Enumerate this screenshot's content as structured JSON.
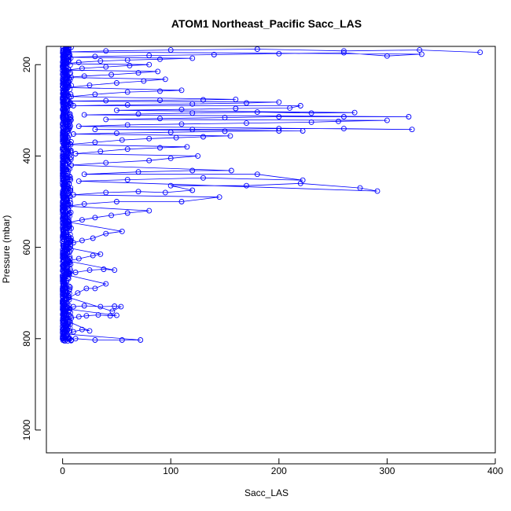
{
  "chart_data": {
    "type": "line",
    "title": "ATOM1 Northeast_Pacific Sacc_LAS",
    "xlabel": "Sacc_LAS",
    "ylabel": "Pressure (mbar)",
    "xlim": [
      -15,
      400
    ],
    "ylim": [
      1050,
      160
    ],
    "y_reversed": true,
    "x_ticks": [
      0,
      100,
      200,
      300,
      400
    ],
    "y_ticks": [
      200,
      400,
      600,
      800,
      1000
    ],
    "grid": false,
    "legend": "none",
    "marker": "open-circle",
    "series": [
      {
        "color": "#0000ff",
        "points": [
          [
            2,
            805
          ],
          [
            5,
            800
          ],
          [
            8,
            803
          ],
          [
            12,
            800
          ],
          [
            30,
            803
          ],
          [
            55,
            803
          ],
          [
            72,
            803
          ],
          [
            4,
            790
          ],
          [
            10,
            785
          ],
          [
            18,
            780
          ],
          [
            25,
            783
          ],
          [
            3,
            760
          ],
          [
            8,
            755
          ],
          [
            15,
            752
          ],
          [
            22,
            750
          ],
          [
            33,
            748
          ],
          [
            44,
            750
          ],
          [
            50,
            749
          ],
          [
            4,
            735
          ],
          [
            10,
            730
          ],
          [
            20,
            728
          ],
          [
            35,
            730
          ],
          [
            48,
            729
          ],
          [
            54,
            730
          ],
          [
            46,
            740
          ],
          [
            6,
            710
          ],
          [
            14,
            700
          ],
          [
            22,
            690
          ],
          [
            30,
            690
          ],
          [
            40,
            680
          ],
          [
            3,
            660
          ],
          [
            12,
            655
          ],
          [
            25,
            650
          ],
          [
            38,
            648
          ],
          [
            48,
            650
          ],
          [
            5,
            630
          ],
          [
            15,
            625
          ],
          [
            28,
            618
          ],
          [
            35,
            615
          ],
          [
            3,
            600
          ],
          [
            10,
            590
          ],
          [
            18,
            585
          ],
          [
            28,
            580
          ],
          [
            40,
            570
          ],
          [
            55,
            565
          ],
          [
            6,
            545
          ],
          [
            18,
            540
          ],
          [
            30,
            535
          ],
          [
            45,
            530
          ],
          [
            60,
            525
          ],
          [
            80,
            520
          ],
          [
            5,
            510
          ],
          [
            20,
            505
          ],
          [
            50,
            500
          ],
          [
            110,
            500
          ],
          [
            145,
            490
          ],
          [
            10,
            485
          ],
          [
            40,
            480
          ],
          [
            70,
            478
          ],
          [
            95,
            480
          ],
          [
            120,
            475
          ],
          [
            100,
            465
          ],
          [
            170,
            465
          ],
          [
            220,
            460
          ],
          [
            275,
            470
          ],
          [
            291,
            477
          ],
          [
            15,
            455
          ],
          [
            60,
            452
          ],
          [
            130,
            448
          ],
          [
            222,
            453
          ],
          [
            180,
            440
          ],
          [
            20,
            440
          ],
          [
            70,
            435
          ],
          [
            120,
            432
          ],
          [
            156,
            432
          ],
          [
            8,
            420
          ],
          [
            40,
            415
          ],
          [
            80,
            410
          ],
          [
            100,
            405
          ],
          [
            125,
            400
          ],
          [
            12,
            395
          ],
          [
            35,
            390
          ],
          [
            60,
            385
          ],
          [
            90,
            382
          ],
          [
            115,
            380
          ],
          [
            5,
            375
          ],
          [
            30,
            370
          ],
          [
            55,
            365
          ],
          [
            80,
            362
          ],
          [
            105,
            360
          ],
          [
            130,
            358
          ],
          [
            155,
            356
          ],
          [
            10,
            352
          ],
          [
            50,
            350
          ],
          [
            100,
            348
          ],
          [
            150,
            346
          ],
          [
            200,
            345
          ],
          [
            222,
            345
          ],
          [
            30,
            342
          ],
          [
            120,
            342
          ],
          [
            200,
            340
          ],
          [
            260,
            340
          ],
          [
            323,
            342
          ],
          [
            15,
            335
          ],
          [
            60,
            332
          ],
          [
            110,
            330
          ],
          [
            170,
            328
          ],
          [
            230,
            326
          ],
          [
            255,
            324
          ],
          [
            300,
            322
          ],
          [
            40,
            320
          ],
          [
            90,
            318
          ],
          [
            150,
            316
          ],
          [
            200,
            314
          ],
          [
            260,
            314
          ],
          [
            320,
            314
          ],
          [
            20,
            310
          ],
          [
            70,
            308
          ],
          [
            120,
            306
          ],
          [
            180,
            304
          ],
          [
            230,
            306
          ],
          [
            270,
            305
          ],
          [
            50,
            300
          ],
          [
            110,
            298
          ],
          [
            160,
            296
          ],
          [
            210,
            295
          ],
          [
            220,
            290
          ],
          [
            10,
            290
          ],
          [
            60,
            288
          ],
          [
            120,
            286
          ],
          [
            170,
            284
          ],
          [
            200,
            282
          ],
          [
            5,
            280
          ],
          [
            40,
            279
          ],
          [
            90,
            278
          ],
          [
            130,
            277
          ],
          [
            160,
            276
          ],
          [
            8,
            270
          ],
          [
            30,
            265
          ],
          [
            60,
            260
          ],
          [
            90,
            258
          ],
          [
            110,
            256
          ],
          [
            5,
            250
          ],
          [
            25,
            245
          ],
          [
            50,
            240
          ],
          [
            75,
            236
          ],
          [
            95,
            232
          ],
          [
            3,
            228
          ],
          [
            20,
            225
          ],
          [
            45,
            222
          ],
          [
            70,
            218
          ],
          [
            88,
            215
          ],
          [
            4,
            212
          ],
          [
            18,
            208
          ],
          [
            40,
            205
          ],
          [
            62,
            202
          ],
          [
            80,
            200
          ],
          [
            2,
            198
          ],
          [
            15,
            195
          ],
          [
            35,
            192
          ],
          [
            60,
            190
          ],
          [
            90,
            188
          ],
          [
            120,
            186
          ],
          [
            6,
            184
          ],
          [
            30,
            182
          ],
          [
            80,
            180
          ],
          [
            140,
            178
          ],
          [
            200,
            176
          ],
          [
            260,
            174
          ],
          [
            300,
            181
          ],
          [
            332,
            177
          ],
          [
            5,
            172
          ],
          [
            40,
            170
          ],
          [
            100,
            168
          ],
          [
            180,
            166
          ],
          [
            260,
            170
          ],
          [
            330,
            168
          ],
          [
            386,
            173
          ]
        ]
      }
    ],
    "dense_band": {
      "color": "#0000ff",
      "x": [
        0,
        8
      ],
      "y": [
        160,
        805
      ]
    }
  }
}
